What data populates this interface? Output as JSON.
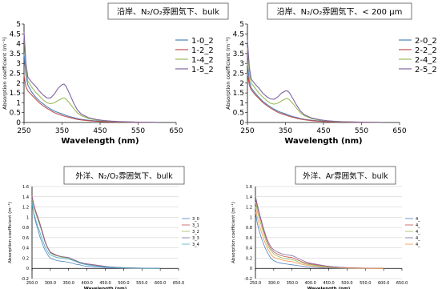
{
  "chart_data": [
    {
      "type": "line",
      "title": "沿岸、N₂/O₂雰囲気下、bulk",
      "xlabel": "Wavelength (nm)",
      "ylabel": "Absorption coefficient (m⁻¹)",
      "xlim": [
        250,
        650
      ],
      "ylim": [
        0,
        5
      ],
      "x_ticks": [
        "250",
        "350",
        "450",
        "550",
        "650"
      ],
      "y_ticks": [
        "0",
        "0.5",
        "1",
        "1.5",
        "2",
        "2.5",
        "3",
        "3.5",
        "4",
        "4.5",
        "5"
      ],
      "grid": false,
      "legend_position": "right",
      "x": [
        250,
        255,
        260,
        270,
        280,
        290,
        300,
        310,
        320,
        330,
        340,
        350,
        355,
        360,
        370,
        380,
        390,
        400,
        420,
        440,
        460,
        480,
        500,
        550,
        600
      ],
      "series": [
        {
          "name": "1-0_2",
          "color": "#4f81bd",
          "values": [
            3.5,
            2.4,
            1.9,
            1.55,
            1.3,
            1.1,
            0.95,
            0.8,
            0.68,
            0.58,
            0.5,
            0.44,
            0.4,
            0.36,
            0.3,
            0.25,
            0.2,
            0.16,
            0.11,
            0.08,
            0.06,
            0.04,
            0.03,
            0.01,
            0.0
          ]
        },
        {
          "name": "1-2_2",
          "color": "#c0504d",
          "values": [
            2.4,
            1.8,
            1.6,
            1.4,
            1.2,
            1.0,
            0.85,
            0.72,
            0.6,
            0.5,
            0.42,
            0.36,
            0.33,
            0.3,
            0.25,
            0.2,
            0.16,
            0.13,
            0.09,
            0.06,
            0.04,
            0.03,
            0.02,
            0.01,
            0.0
          ]
        },
        {
          "name": "1-4_2",
          "color": "#9bbb59",
          "values": [
            4.5,
            2.7,
            2.1,
            1.8,
            1.55,
            1.35,
            1.15,
            1.0,
            0.95,
            1.0,
            1.12,
            1.22,
            1.25,
            1.2,
            0.98,
            0.72,
            0.5,
            0.35,
            0.2,
            0.13,
            0.09,
            0.06,
            0.04,
            0.02,
            0.01
          ]
        },
        {
          "name": "1-5_2",
          "color": "#8064a2",
          "values": [
            4.6,
            3.0,
            2.3,
            2.05,
            1.85,
            1.6,
            1.4,
            1.25,
            1.25,
            1.45,
            1.75,
            1.92,
            1.95,
            1.85,
            1.45,
            1.0,
            0.65,
            0.43,
            0.24,
            0.15,
            0.1,
            0.07,
            0.05,
            0.02,
            0.01
          ]
        }
      ]
    },
    {
      "type": "line",
      "title": "沿岸、N₂/O₂雰囲気下、< 200 μm",
      "xlabel": "Wavelength (nm)",
      "ylabel": "Absorption coefficient (m⁻¹)",
      "xlim": [
        250,
        650
      ],
      "ylim": [
        0,
        5
      ],
      "x_ticks": [
        "250",
        "350",
        "450",
        "550",
        "650"
      ],
      "y_ticks": [
        "0",
        "0.5",
        "1",
        "1.5",
        "2",
        "2.5",
        "3",
        "3.5",
        "4",
        "4.5",
        "5"
      ],
      "grid": false,
      "legend_position": "right",
      "x": [
        250,
        255,
        260,
        270,
        280,
        290,
        300,
        310,
        320,
        330,
        340,
        350,
        355,
        360,
        370,
        380,
        390,
        400,
        420,
        440,
        460,
        480,
        500,
        550,
        600
      ],
      "series": [
        {
          "name": "2-0_2",
          "color": "#4f81bd",
          "values": [
            3.0,
            2.1,
            1.75,
            1.5,
            1.28,
            1.08,
            0.93,
            0.8,
            0.68,
            0.58,
            0.5,
            0.44,
            0.4,
            0.36,
            0.3,
            0.25,
            0.2,
            0.16,
            0.11,
            0.08,
            0.06,
            0.04,
            0.03,
            0.01,
            0.0
          ]
        },
        {
          "name": "2-2_2",
          "color": "#c0504d",
          "values": [
            2.5,
            1.9,
            1.65,
            1.42,
            1.22,
            1.02,
            0.87,
            0.74,
            0.62,
            0.52,
            0.44,
            0.38,
            0.35,
            0.31,
            0.26,
            0.21,
            0.17,
            0.14,
            0.09,
            0.06,
            0.04,
            0.03,
            0.02,
            0.01,
            0.0
          ]
        },
        {
          "name": "2-4_2",
          "color": "#9bbb59",
          "values": [
            3.8,
            2.5,
            2.0,
            1.75,
            1.5,
            1.3,
            1.12,
            0.98,
            0.93,
            0.98,
            1.1,
            1.2,
            1.22,
            1.16,
            0.95,
            0.7,
            0.48,
            0.34,
            0.19,
            0.12,
            0.08,
            0.05,
            0.04,
            0.02,
            0.01
          ]
        },
        {
          "name": "2-5_2",
          "color": "#8064a2",
          "values": [
            4.2,
            2.8,
            2.2,
            1.95,
            1.75,
            1.5,
            1.32,
            1.2,
            1.18,
            1.3,
            1.5,
            1.6,
            1.6,
            1.52,
            1.2,
            0.85,
            0.57,
            0.39,
            0.22,
            0.14,
            0.09,
            0.06,
            0.04,
            0.02,
            0.01
          ]
        }
      ]
    },
    {
      "type": "line",
      "title": "外洋、N₂/O₂雰囲気下、bulk",
      "xlabel": "Wavelength (nm)",
      "ylabel": "Absorption coefficient (m⁻¹)",
      "xlim": [
        250,
        650
      ],
      "ylim": [
        -0.2,
        1.6
      ],
      "x_ticks": [
        "250.0",
        "300.0",
        "350.0",
        "400.0",
        "450.0",
        "500.0",
        "550.0",
        "600.0",
        "650.0"
      ],
      "y_ticks": [
        "-0.2",
        "0",
        "0.2",
        "0.4",
        "0.6",
        "0.8",
        "1",
        "1.2",
        "1.4",
        "1.6"
      ],
      "grid": true,
      "legend_position": "right",
      "x": [
        250,
        255,
        260,
        265,
        270,
        275,
        280,
        285,
        290,
        295,
        300,
        310,
        320,
        330,
        340,
        350,
        360,
        370,
        380,
        390,
        400,
        420,
        440,
        460,
        480,
        500,
        550,
        600
      ],
      "series": [
        {
          "name": "3_0",
          "color": "#4f81bd",
          "values": [
            1.3,
            1.05,
            0.9,
            0.78,
            0.66,
            0.55,
            0.45,
            0.36,
            0.3,
            0.24,
            0.2,
            0.17,
            0.15,
            0.14,
            0.13,
            0.12,
            0.1,
            0.08,
            0.07,
            0.05,
            0.04,
            0.03,
            0.02,
            0.015,
            0.01,
            0.005,
            0.0,
            0.0
          ]
        },
        {
          "name": "3_1",
          "color": "#c0504d",
          "values": [
            1.42,
            1.25,
            1.12,
            1.02,
            0.92,
            0.8,
            0.68,
            0.55,
            0.45,
            0.38,
            0.32,
            0.28,
            0.25,
            0.23,
            0.22,
            0.21,
            0.18,
            0.15,
            0.12,
            0.1,
            0.09,
            0.07,
            0.05,
            0.03,
            0.02,
            0.015,
            0.005,
            0.0
          ]
        },
        {
          "name": "3_2",
          "color": "#9bbb59",
          "values": [
            1.35,
            1.2,
            1.08,
            0.97,
            0.87,
            0.76,
            0.64,
            0.52,
            0.43,
            0.36,
            0.3,
            0.26,
            0.24,
            0.22,
            0.21,
            0.2,
            0.17,
            0.14,
            0.11,
            0.09,
            0.08,
            0.06,
            0.04,
            0.03,
            0.02,
            0.01,
            0.005,
            0.0
          ]
        },
        {
          "name": "3_3",
          "color": "#8064a2",
          "values": [
            1.4,
            1.23,
            1.1,
            1.0,
            0.9,
            0.78,
            0.66,
            0.53,
            0.44,
            0.37,
            0.31,
            0.27,
            0.25,
            0.23,
            0.22,
            0.21,
            0.18,
            0.15,
            0.12,
            0.1,
            0.085,
            0.065,
            0.045,
            0.03,
            0.02,
            0.012,
            0.005,
            0.0
          ]
        },
        {
          "name": "3_4",
          "color": "#4bacc6",
          "values": [
            1.25,
            1.08,
            0.95,
            0.84,
            0.74,
            0.63,
            0.53,
            0.43,
            0.36,
            0.3,
            0.26,
            0.23,
            0.21,
            0.2,
            0.19,
            0.18,
            0.16,
            0.13,
            0.1,
            0.085,
            0.07,
            0.05,
            0.035,
            0.025,
            0.015,
            0.01,
            0.004,
            0.0
          ]
        }
      ]
    },
    {
      "type": "line",
      "title": "外洋、Ar雰囲気下、bulk",
      "xlabel": "Wavelength (nm)",
      "ylabel": "Absorption coefficient (m⁻¹)",
      "xlim": [
        250,
        650
      ],
      "ylim": [
        -0.2,
        1.6
      ],
      "x_ticks": [
        "250.0",
        "300.0",
        "350.0",
        "400.0",
        "450.0",
        "500.0",
        "550.0",
        "600.0",
        "650.0"
      ],
      "y_ticks": [
        "-0.2",
        "0",
        "0.2",
        "0.4",
        "0.6",
        "0.8",
        "1",
        "1.2",
        "1.4",
        "1.6"
      ],
      "grid": true,
      "legend_position": "right",
      "legend_labels": [
        "4_",
        "4_",
        "4_",
        "4_",
        "4_"
      ],
      "x": [
        250,
        255,
        260,
        265,
        270,
        275,
        280,
        285,
        290,
        295,
        300,
        310,
        320,
        330,
        340,
        350,
        360,
        370,
        380,
        390,
        400,
        420,
        440,
        460,
        480,
        500,
        550,
        600
      ],
      "series": [
        {
          "color": "#4f81bd",
          "values": [
            1.1,
            0.88,
            0.74,
            0.62,
            0.52,
            0.43,
            0.35,
            0.28,
            0.22,
            0.18,
            0.15,
            0.12,
            0.1,
            0.09,
            0.08,
            0.07,
            0.06,
            0.05,
            0.04,
            0.03,
            0.025,
            0.02,
            0.012,
            0.008,
            0.005,
            0.003,
            0.0,
            0.0
          ]
        },
        {
          "color": "#c0504d",
          "values": [
            1.38,
            1.2,
            1.06,
            0.93,
            0.8,
            0.68,
            0.57,
            0.48,
            0.41,
            0.36,
            0.32,
            0.28,
            0.25,
            0.23,
            0.22,
            0.21,
            0.18,
            0.15,
            0.12,
            0.1,
            0.085,
            0.065,
            0.045,
            0.03,
            0.02,
            0.012,
            0.005,
            0.0
          ]
        },
        {
          "color": "#9bbb59",
          "values": [
            1.3,
            1.12,
            0.98,
            0.86,
            0.74,
            0.62,
            0.52,
            0.43,
            0.37,
            0.32,
            0.28,
            0.24,
            0.21,
            0.19,
            0.18,
            0.17,
            0.15,
            0.12,
            0.1,
            0.08,
            0.07,
            0.05,
            0.035,
            0.025,
            0.015,
            0.01,
            0.004,
            0.0
          ]
        },
        {
          "color": "#8064a2",
          "values": [
            1.42,
            1.25,
            1.1,
            0.97,
            0.84,
            0.72,
            0.61,
            0.52,
            0.45,
            0.4,
            0.36,
            0.32,
            0.29,
            0.27,
            0.26,
            0.25,
            0.22,
            0.18,
            0.15,
            0.12,
            0.1,
            0.075,
            0.05,
            0.035,
            0.022,
            0.014,
            0.005,
            0.0
          ]
        },
        {
          "color": "#f79646",
          "values": [
            1.2,
            1.0,
            0.86,
            0.74,
            0.63,
            0.53,
            0.44,
            0.36,
            0.3,
            0.25,
            0.22,
            0.19,
            0.17,
            0.15,
            0.14,
            0.13,
            0.11,
            0.09,
            0.075,
            0.06,
            0.05,
            0.035,
            0.025,
            0.018,
            0.01,
            0.006,
            0.002,
            0.0
          ]
        }
      ]
    }
  ]
}
